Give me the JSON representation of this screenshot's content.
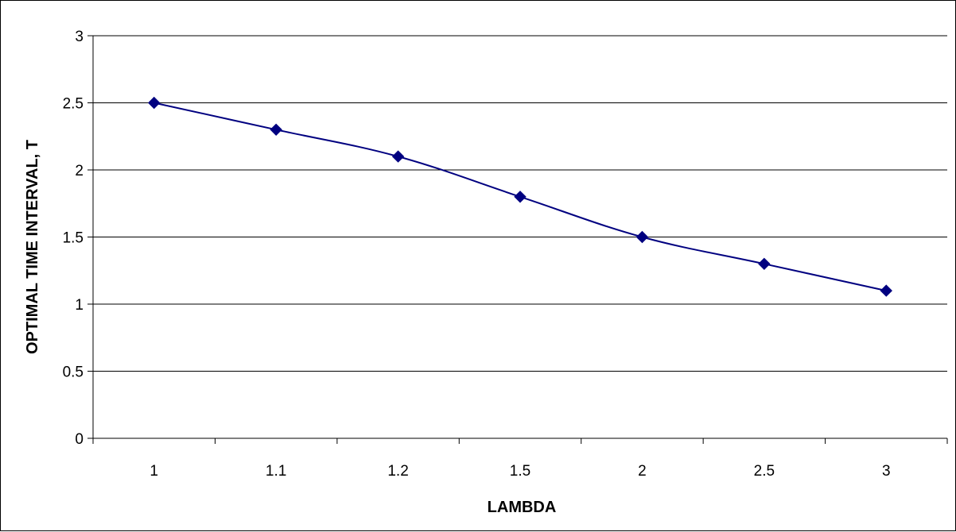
{
  "chart_data": {
    "type": "line",
    "title": "",
    "xlabel": "LAMBDA",
    "ylabel": "OPTIMAL TIME INTERVAL, T",
    "categories": [
      "1",
      "1.1",
      "1.2",
      "1.5",
      "2",
      "2.5",
      "3"
    ],
    "series": [
      {
        "values": [
          2.5,
          2.3,
          2.1,
          1.8,
          1.5,
          1.3,
          1.1
        ],
        "color": "#000080",
        "marker": "diamond"
      }
    ],
    "ylim": [
      0,
      3
    ],
    "yticks": [
      "0",
      "0.5",
      "1",
      "1.5",
      "2",
      "2.5",
      "3"
    ],
    "grid": true,
    "legend": "none",
    "colors": {
      "line": "#000080",
      "gridline": "#000000",
      "background": "#ffffff"
    }
  }
}
